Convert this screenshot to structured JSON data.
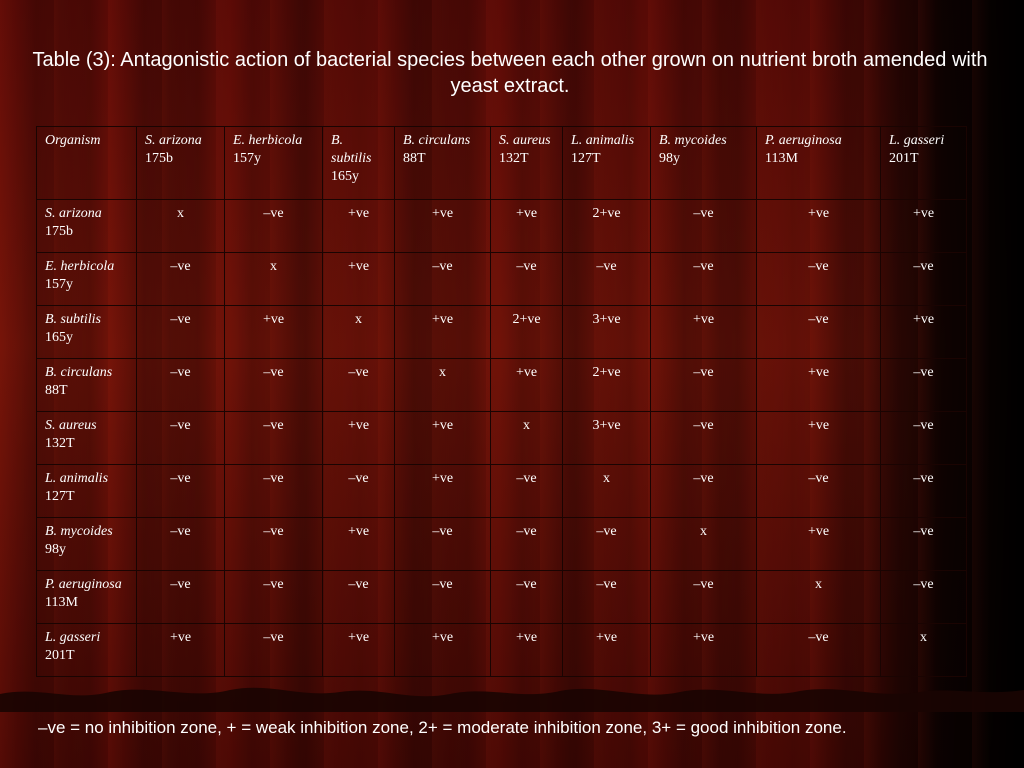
{
  "title": "Table (3): Antagonistic action of bacterial species between each other grown on nutrient broth amended with yeast extract.",
  "table": {
    "corner": "Organism",
    "columns": [
      {
        "name": "S. arizona",
        "code": "175b"
      },
      {
        "name": "E. herbicola",
        "code": "157y"
      },
      {
        "name": "B. subtilis",
        "code": "165y"
      },
      {
        "name": "B. circulans",
        "code": "88T"
      },
      {
        "name": "S. aureus",
        "code": "132T"
      },
      {
        "name": "L. animalis",
        "code": "127T"
      },
      {
        "name": "B. mycoides",
        "code": "98y"
      },
      {
        "name": "P. aeruginosa",
        "code": "113M"
      },
      {
        "name": "L. gasseri",
        "code": "201T"
      }
    ],
    "rows": [
      {
        "name": "S. arizona",
        "code": "175b",
        "values": [
          "x",
          "–ve",
          "+ve",
          "+ve",
          "+ve",
          "2+ve",
          "–ve",
          "+ve",
          "+ve"
        ]
      },
      {
        "name": "E. herbicola",
        "code": "157y",
        "values": [
          "–ve",
          "x",
          "+ve",
          "–ve",
          "–ve",
          "–ve",
          "–ve",
          "–ve",
          "–ve"
        ]
      },
      {
        "name": "B. subtilis",
        "code": "165y",
        "values": [
          "–ve",
          "+ve",
          "x",
          "+ve",
          "2+ve",
          "3+ve",
          "+ve",
          "–ve",
          "+ve"
        ]
      },
      {
        "name": "B. circulans",
        "code": "88T",
        "values": [
          "–ve",
          "–ve",
          "–ve",
          "x",
          "+ve",
          "2+ve",
          "–ve",
          "+ve",
          "–ve"
        ]
      },
      {
        "name": "S. aureus",
        "code": "132T",
        "values": [
          "–ve",
          "–ve",
          "+ve",
          "+ve",
          "x",
          "3+ve",
          "–ve",
          "+ve",
          "–ve"
        ]
      },
      {
        "name": "L. animalis",
        "code": "127T",
        "values": [
          "–ve",
          "–ve",
          "–ve",
          "+ve",
          "–ve",
          "x",
          "–ve",
          "–ve",
          "–ve"
        ]
      },
      {
        "name": "B. mycoides",
        "code": "98y",
        "values": [
          "–ve",
          "–ve",
          "+ve",
          "–ve",
          "–ve",
          "–ve",
          "x",
          "+ve",
          "–ve"
        ]
      },
      {
        "name": "P. aeruginosa",
        "code": "113M",
        "values": [
          "–ve",
          "–ve",
          "–ve",
          "–ve",
          "–ve",
          "–ve",
          "–ve",
          "x",
          "–ve"
        ]
      },
      {
        "name": "L. gasseri",
        "code": "201T",
        "values": [
          "+ve",
          "–ve",
          "+ve",
          "+ve",
          "+ve",
          "+ve",
          "+ve",
          "–ve",
          "x"
        ]
      }
    ]
  },
  "footnote": "–ve = no inhibition zone, + = weak inhibition zone, 2+ = moderate inhibition zone, 3+ = good inhibition zone.",
  "colors": {
    "background": "#5a0a06",
    "text": "#ffffff",
    "border": "#1a0402"
  }
}
